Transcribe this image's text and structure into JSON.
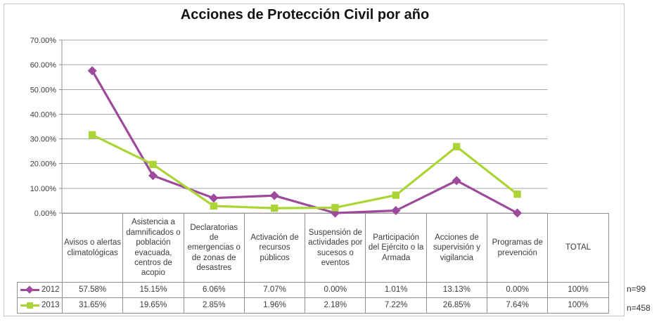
{
  "chart_data": {
    "type": "line",
    "title": "Acciones de Protección Civil por año",
    "categories": [
      "Avisos o alertas climatológicas",
      "Asistencia a damnificados o población evacuada, centros de acopio",
      "Declaratorias de emergencias o de zonas de desastres",
      "Activación de recursos públicos",
      "Suspensión de actividades por sucesos o eventos",
      "Participación del Ejército o la Armada",
      "Acciones de supervisión y vigilancia",
      "Programas de prevención"
    ],
    "total_label": "TOTAL",
    "ylim": [
      0,
      70
    ],
    "ytick_step": 10,
    "ytick_labels": [
      "70.00%",
      "60.00%",
      "50.00%",
      "40.00%",
      "30.00%",
      "20.00%",
      "10.00%",
      "0.00%"
    ],
    "grid": true,
    "legend_position": "table-left",
    "series": [
      {
        "name": "2012",
        "marker": "diamond",
        "color": "#9D4A9C",
        "values": [
          57.58,
          15.15,
          6.06,
          7.07,
          0.0,
          1.01,
          13.13,
          0.0
        ],
        "total": "100%",
        "n": "n=99"
      },
      {
        "name": "2013",
        "marker": "square",
        "color": "#ABD436",
        "values": [
          31.65,
          19.65,
          2.85,
          1.96,
          2.18,
          7.22,
          26.85,
          7.64
        ],
        "total": "100%",
        "n": "n=458"
      }
    ]
  },
  "table": {
    "rows": [
      {
        "label": "2012",
        "cells": [
          "57.58%",
          "15.15%",
          "6.06%",
          "7.07%",
          "0.00%",
          "1.01%",
          "13.13%",
          "0.00%",
          "100%"
        ]
      },
      {
        "label": "2013",
        "cells": [
          "31.65%",
          "19.65%",
          "2.85%",
          "1.96%",
          "2.18%",
          "7.22%",
          "26.85%",
          "7.64%",
          "100%"
        ]
      }
    ]
  },
  "annotations": {
    "n_2012": "n=99",
    "n_2013": "n=458"
  }
}
